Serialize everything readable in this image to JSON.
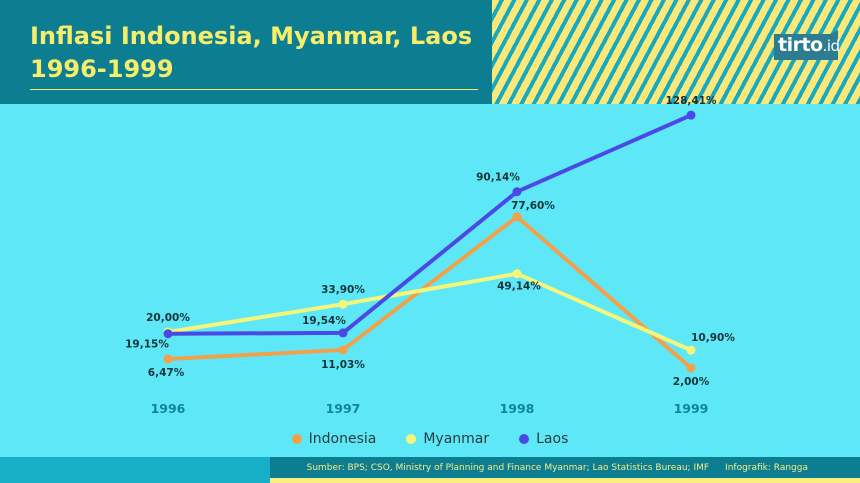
{
  "title": {
    "line1": "Inflasi Indonesia, Myanmar, Laos",
    "line2": "1996-1999"
  },
  "logo": {
    "main": "tirto",
    "suffix": ".id"
  },
  "colors": {
    "background": "#5ee8f7",
    "header": "#0d7d92",
    "title": "#f6ee6a",
    "indonesia": "#f2a14a",
    "myanmar": "#f5f57a",
    "laos": "#4a49e6",
    "tick": "#0f8599"
  },
  "chart_data": {
    "type": "line",
    "x": [
      "1996",
      "1997",
      "1998",
      "1999"
    ],
    "series": [
      {
        "name": "Indonesia",
        "values": [
          6.47,
          11.03,
          77.6,
          2.0
        ],
        "labels": [
          "6,47%",
          "11,03%",
          "77,60%",
          "2,00%"
        ]
      },
      {
        "name": "Myanmar",
        "values": [
          20.0,
          33.9,
          49.14,
          10.9
        ],
        "labels": [
          "20,00%",
          "33,90%",
          "49,14%",
          "10,90%"
        ]
      },
      {
        "name": "Laos",
        "values": [
          19.15,
          19.54,
          90.14,
          128.41
        ],
        "labels": [
          "19,15%",
          "19,54%",
          "90,14%",
          "128,41%"
        ]
      }
    ],
    "ylim": [
      0,
      130
    ],
    "grid": false,
    "legend": "bottom-center"
  },
  "footer": {
    "source": "Sumber: BPS; CSO, Ministry of Planning and Finance Myanmar; Lao Statistics Bureau; IMF",
    "credit": "Infografik: Rangga"
  }
}
